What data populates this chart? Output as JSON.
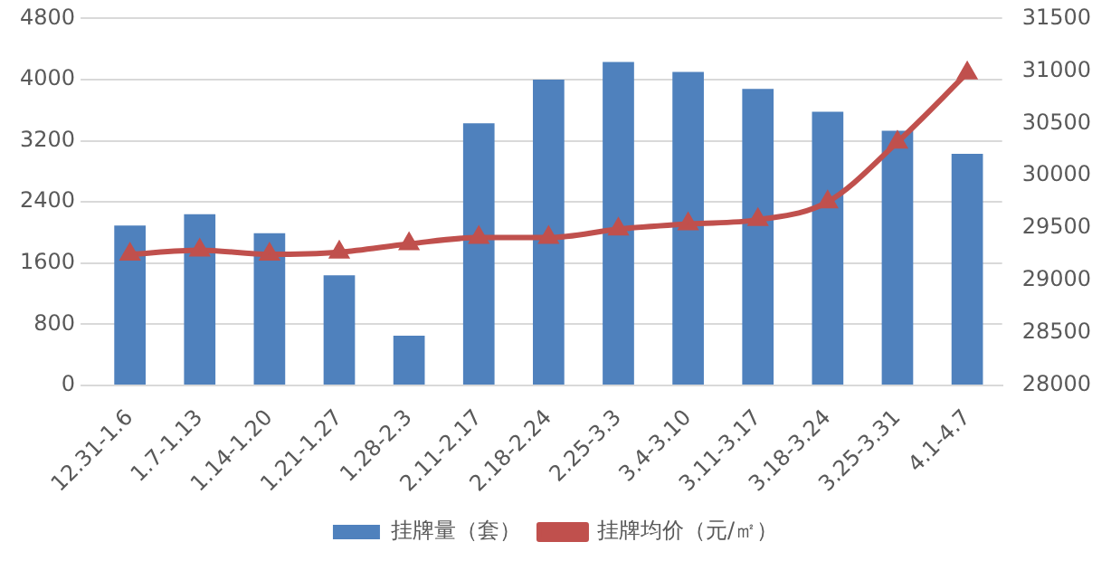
{
  "chart_data": {
    "type": "bar",
    "categories": [
      "12.31-1.6",
      "1.7-1.13",
      "1.14-1.20",
      "1.21-1.27",
      "1.28-2.3",
      "2.11-2.17",
      "2.18-2.24",
      "2.25-3.3",
      "3.4-3.10",
      "3.11-3.17",
      "3.18-3.24",
      "3.25-3.31",
      "4.1-4.7"
    ],
    "series": [
      {
        "name": "挂牌量（套）",
        "color": "#4f81bd",
        "values": [
          2090,
          2240,
          1990,
          1440,
          650,
          3430,
          4000,
          4230,
          4100,
          3880,
          3580,
          3330,
          3030
        ]
      },
      {
        "name": "挂牌均价（元/㎡）",
        "type": "line",
        "axis": "y2",
        "color": "#c0504d",
        "marker": "triangle",
        "values": [
          29250,
          29290,
          29250,
          29270,
          29350,
          29410,
          29410,
          29490,
          29540,
          29580,
          29750,
          30320,
          30980
        ]
      }
    ],
    "ylim": [
      0,
      4800
    ],
    "yticks": [
      0,
      800,
      1600,
      2400,
      3200,
      4000,
      4800
    ],
    "y2lim": [
      28000,
      31500
    ],
    "y2ticks": [
      28000,
      28500,
      29000,
      29500,
      30000,
      30500,
      31000,
      31500
    ],
    "grid": "y",
    "legend": "bottom"
  }
}
